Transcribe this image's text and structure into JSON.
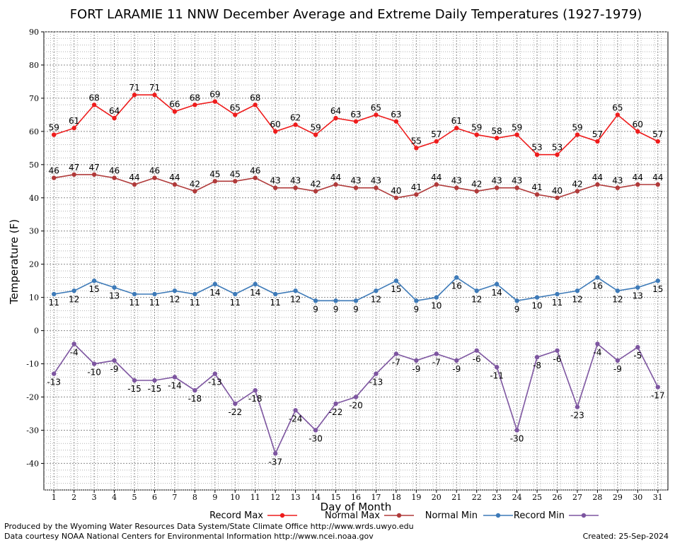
{
  "chart_data": {
    "type": "line",
    "title": "FORT LARAMIE 11 NNW December Average and Extreme Daily Temperatures (1927-1979)",
    "xlabel": "Day of Month",
    "ylabel": "Temperature (F)",
    "ylim": [
      -48,
      90
    ],
    "yticks": [
      90,
      80,
      70,
      60,
      50,
      40,
      30,
      20,
      10,
      0,
      -10,
      -20,
      -30,
      -40
    ],
    "x": [
      1,
      2,
      3,
      4,
      5,
      6,
      7,
      8,
      9,
      10,
      11,
      12,
      13,
      14,
      15,
      16,
      17,
      18,
      19,
      20,
      21,
      22,
      23,
      24,
      25,
      26,
      27,
      28,
      29,
      30,
      31
    ],
    "grid": true,
    "legend_position": "bottom",
    "series": [
      {
        "name": "Record Max",
        "color": "#ee1c1c",
        "label_pos": "above",
        "values": [
          59,
          61,
          68,
          64,
          71,
          71,
          66,
          68,
          69,
          65,
          68,
          60,
          62,
          59,
          64,
          63,
          65,
          63,
          55,
          57,
          61,
          59,
          58,
          59,
          53,
          53,
          59,
          57,
          65,
          60,
          57
        ]
      },
      {
        "name": "Normal Max",
        "color": "#b03a3a",
        "label_pos": "above",
        "values": [
          46,
          47,
          47,
          46,
          44,
          46,
          44,
          42,
          45,
          45,
          46,
          43,
          43,
          42,
          44,
          43,
          43,
          40,
          41,
          44,
          43,
          42,
          43,
          43,
          41,
          40,
          42,
          44,
          43,
          44,
          44
        ]
      },
      {
        "name": "Normal Min",
        "color": "#3d7ab8",
        "label_pos": "below",
        "values": [
          11,
          12,
          15,
          13,
          11,
          11,
          12,
          11,
          14,
          11,
          14,
          11,
          12,
          9,
          9,
          9,
          12,
          15,
          9,
          10,
          16,
          12,
          14,
          9,
          10,
          11,
          12,
          16,
          12,
          13,
          15
        ]
      },
      {
        "name": "Record Min",
        "color": "#7d55a0",
        "label_pos": "below",
        "values": [
          -13,
          -4,
          -10,
          -9,
          -15,
          -15,
          -14,
          -18,
          -13,
          -22,
          -18,
          -37,
          -24,
          -30,
          -22,
          -20,
          -13,
          -7,
          -9,
          -7,
          -9,
          -6,
          -11,
          -30,
          -8,
          -6,
          -23,
          -4,
          -9,
          -5,
          -17
        ]
      }
    ]
  },
  "footer": {
    "produced_by": "Produced by the Wyoming Water Resources Data System/State Climate Office http://www.wrds.uwyo.edu",
    "courtesy": "Data courtesy NOAA National Centers for Environmental Information http://www.ncei.noaa.gov",
    "created": "Created:  25-Sep-2024"
  }
}
